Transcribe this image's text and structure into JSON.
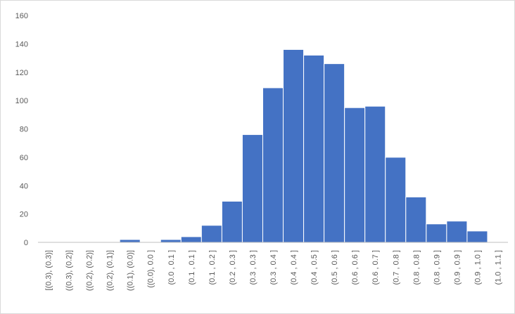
{
  "chart_data": {
    "type": "bar",
    "categories": [
      "[(0.3), (0.3)]",
      "((0.3), (0.2)]",
      "((0.2), (0.2)]",
      "((0.2), (0.1)]",
      "((0.1), (0.0)]",
      "((0.0), 0.0 ]",
      "(0.0 , 0.1 ]",
      "(0.1 , 0.1 ]",
      "(0.1 , 0.2 ]",
      "(0.2 , 0.3 ]",
      "(0.3 , 0.3 ]",
      "(0.3 , 0.4 ]",
      "(0.4 , 0.4 ]",
      "(0.4 , 0.5 ]",
      "(0.5 , 0.6 ]",
      "(0.6 , 0.6 ]",
      "(0.6 , 0.7 ]",
      "(0.7 , 0.8 ]",
      "(0.8 , 0.8 ]",
      "(0.8 , 0.9 ]",
      "(0.9 , 0.9 ]",
      "(0.9 , 1.0 ]",
      "(1.0 , 1.1 ]"
    ],
    "values": [
      0,
      0,
      0,
      0,
      2,
      0,
      2,
      4,
      12,
      29,
      76,
      109,
      136,
      132,
      126,
      95,
      96,
      60,
      32,
      13,
      15,
      8,
      0
    ],
    "color": "#4472c4",
    "ylim": [
      0,
      160
    ],
    "yticks": [
      0,
      20,
      40,
      60,
      80,
      100,
      120,
      140,
      160
    ],
    "grid": false
  }
}
